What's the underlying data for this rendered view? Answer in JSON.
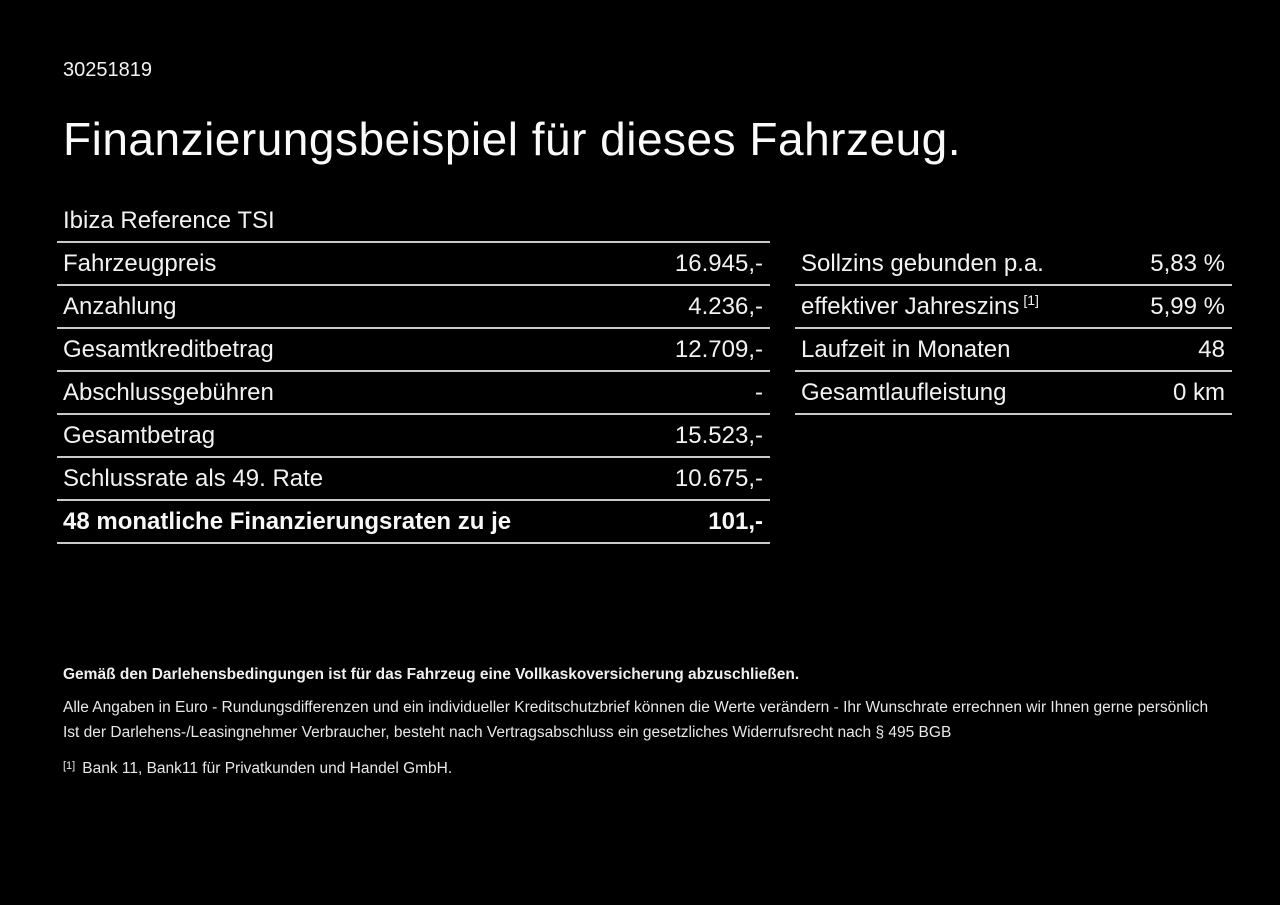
{
  "page": {
    "doc_id": "30251819",
    "title": "Finanzierungsbeispiel für dieses Fahrzeug.",
    "vehicle_model": "Ibiza Reference TSI"
  },
  "finance_table": {
    "rows": [
      {
        "label": "Fahrzeugpreis",
        "value": "16.945,-"
      },
      {
        "label": "Anzahlung",
        "value": "4.236,-"
      },
      {
        "label": "Gesamtkreditbetrag",
        "value": "12.709,-"
      },
      {
        "label": "Abschlussgebühren",
        "value": "-"
      },
      {
        "label": "Gesamtbetrag",
        "value": "15.523,-"
      },
      {
        "label": "Schlussrate als 49. Rate",
        "value": "10.675,-"
      },
      {
        "label": "48 monatliche Finanzierungsraten zu je",
        "value": "101,-"
      }
    ]
  },
  "conditions_table": {
    "rows": [
      {
        "label": "Sollzins gebunden p.a.",
        "value": "5,83 %"
      },
      {
        "label": "effektiver Jahreszins",
        "sup": "[1]",
        "value": "5,99 %"
      },
      {
        "label": "Laufzeit in Monaten",
        "value": "48"
      },
      {
        "label": "Gesamtlaufleistung",
        "value": "0 km"
      }
    ]
  },
  "footer": {
    "bold_note": "Gemäß den Darlehensbedingungen ist für das Fahrzeug eine Vollkaskoversicherung abzuschließen.",
    "note_line_1": "Alle Angaben in Euro - Rundungsdifferenzen und ein individueller Kreditschutzbrief können die Werte verändern - Ihr Wunschrate errechnen wir Ihnen gerne persönlich",
    "note_line_2": "Ist der Darlehens-/Leasingnehmer Verbraucher, besteht nach Vertragsabschluss ein gesetzliches Widerrufsrecht nach § 495 BGB",
    "footnote_marker": "[1]",
    "footnote_text": "Bank 11, Bank11 für Privatkunden und Handel GmbH."
  },
  "colors": {
    "background": "#000000",
    "text": "#f2f2f2",
    "divider": "#c9c9c9"
  }
}
